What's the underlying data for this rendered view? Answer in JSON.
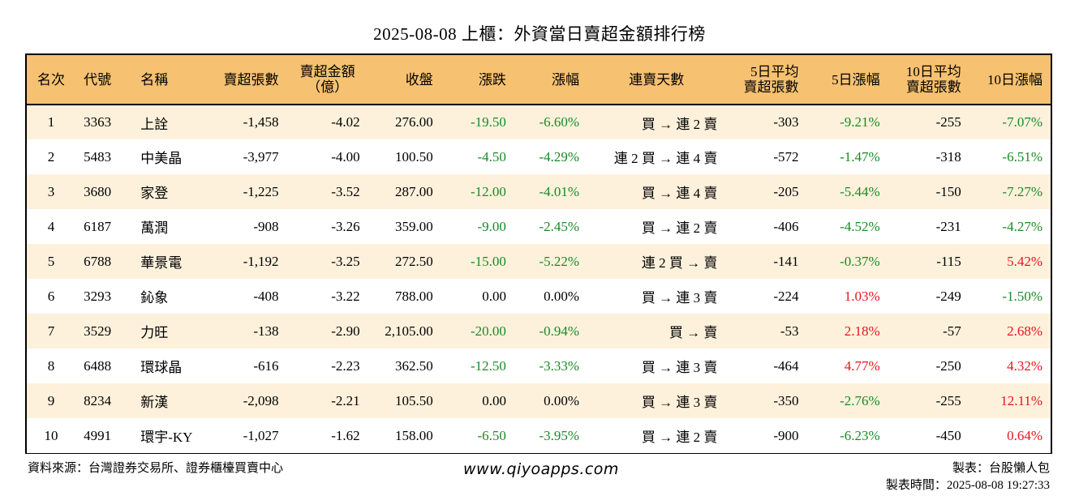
{
  "title": "2025-08-08 上櫃：外資當日賣超金額排行榜",
  "headers": {
    "rank": "名次",
    "code": "代號",
    "name": "名稱",
    "sell_shares": "賣超張數",
    "sell_amount_1": "賣超金額",
    "sell_amount_2": "（億）",
    "close": "收盤",
    "change": "漲跌",
    "change_pct": "漲幅",
    "streak": "連賣天數",
    "avg5_1": "5日平均",
    "avg5_2": "賣超張數",
    "pct5": "5日漲幅",
    "avg10_1": "10日平均",
    "avg10_2": "賣超張數",
    "pct10": "10日漲幅"
  },
  "rows": [
    {
      "rank": "1",
      "code": "3363",
      "name": "上詮",
      "sell_shares": "-1,458",
      "sell_amount": "-4.02",
      "close": "276.00",
      "change": "-19.50",
      "change_pct": "-6.60%",
      "streak": "買 → 連 2 賣",
      "avg5": "-303",
      "pct5": "-9.21%",
      "avg10": "-255",
      "pct10": "-7.07%"
    },
    {
      "rank": "2",
      "code": "5483",
      "name": "中美晶",
      "sell_shares": "-3,977",
      "sell_amount": "-4.00",
      "close": "100.50",
      "change": "-4.50",
      "change_pct": "-4.29%",
      "streak": "連 2 買 → 連 4 賣",
      "avg5": "-572",
      "pct5": "-1.47%",
      "avg10": "-318",
      "pct10": "-6.51%"
    },
    {
      "rank": "3",
      "code": "3680",
      "name": "家登",
      "sell_shares": "-1,225",
      "sell_amount": "-3.52",
      "close": "287.00",
      "change": "-12.00",
      "change_pct": "-4.01%",
      "streak": "買 → 連 4 賣",
      "avg5": "-205",
      "pct5": "-5.44%",
      "avg10": "-150",
      "pct10": "-7.27%"
    },
    {
      "rank": "4",
      "code": "6187",
      "name": "萬潤",
      "sell_shares": "-908",
      "sell_amount": "-3.26",
      "close": "359.00",
      "change": "-9.00",
      "change_pct": "-2.45%",
      "streak": "買 → 連 2 賣",
      "avg5": "-406",
      "pct5": "-4.52%",
      "avg10": "-231",
      "pct10": "-4.27%"
    },
    {
      "rank": "5",
      "code": "6788",
      "name": "華景電",
      "sell_shares": "-1,192",
      "sell_amount": "-3.25",
      "close": "272.50",
      "change": "-15.00",
      "change_pct": "-5.22%",
      "streak": "連 2 買 → 賣",
      "avg5": "-141",
      "pct5": "-0.37%",
      "avg10": "-115",
      "pct10": "5.42%"
    },
    {
      "rank": "6",
      "code": "3293",
      "name": "鈊象",
      "sell_shares": "-408",
      "sell_amount": "-3.22",
      "close": "788.00",
      "change": "0.00",
      "change_pct": "0.00%",
      "streak": "買 → 連 3 賣",
      "avg5": "-224",
      "pct5": "1.03%",
      "avg10": "-249",
      "pct10": "-1.50%"
    },
    {
      "rank": "7",
      "code": "3529",
      "name": "力旺",
      "sell_shares": "-138",
      "sell_amount": "-2.90",
      "close": "2,105.00",
      "change": "-20.00",
      "change_pct": "-0.94%",
      "streak": "買 → 賣",
      "avg5": "-53",
      "pct5": "2.18%",
      "avg10": "-57",
      "pct10": "2.68%"
    },
    {
      "rank": "8",
      "code": "6488",
      "name": "環球晶",
      "sell_shares": "-616",
      "sell_amount": "-2.23",
      "close": "362.50",
      "change": "-12.50",
      "change_pct": "-3.33%",
      "streak": "買 → 連 3 賣",
      "avg5": "-464",
      "pct5": "4.77%",
      "avg10": "-250",
      "pct10": "4.32%"
    },
    {
      "rank": "9",
      "code": "8234",
      "name": "新漢",
      "sell_shares": "-2,098",
      "sell_amount": "-2.21",
      "close": "105.50",
      "change": "0.00",
      "change_pct": "0.00%",
      "streak": "買 → 連 3 賣",
      "avg5": "-350",
      "pct5": "-2.76%",
      "avg10": "-255",
      "pct10": "12.11%"
    },
    {
      "rank": "10",
      "code": "4991",
      "name": "環宇-KY",
      "sell_shares": "-1,027",
      "sell_amount": "-1.62",
      "close": "158.00",
      "change": "-6.50",
      "change_pct": "-3.95%",
      "streak": "買 → 連 2 賣",
      "avg5": "-900",
      "pct5": "-6.23%",
      "avg10": "-450",
      "pct10": "0.64%"
    }
  ],
  "footer": {
    "source": "資料來源：台灣證券交易所、證券櫃檯買賣中心",
    "website": "www.qiyoapps.com",
    "maker": "製表：台股懶人包",
    "time": "製表時間：2025-08-08 19:27:33"
  },
  "colors": {
    "header_bg": "#f6c170",
    "stripe_bg": "#fdf1dc",
    "positive": "#e8141c",
    "negative": "#1a8a26"
  }
}
